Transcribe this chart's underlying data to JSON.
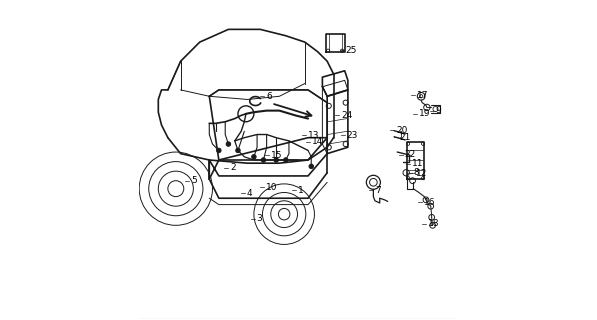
{
  "bg_color": "#ffffff",
  "line_color": "#1a1a1a",
  "label_color": "#000000",
  "fig_width": 5.97,
  "fig_height": 3.2,
  "dpi": 100,
  "font_size": 7
}
